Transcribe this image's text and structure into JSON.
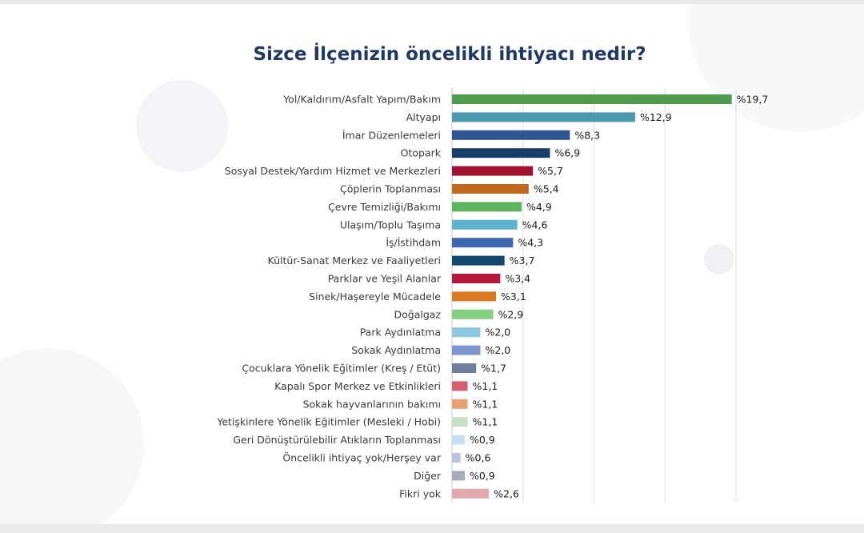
{
  "chart_data": {
    "type": "bar",
    "orientation": "horizontal",
    "title": "Sizce İlçenizin öncelikli ihtiyacı nedir?",
    "value_prefix": "%",
    "xlim": [
      0,
      20
    ],
    "grid": true,
    "categories": [
      "Yol/Kaldırım/Asfalt Yapım/Bakım",
      "Altyapı",
      "İmar Düzenlemeleri",
      "Otopark",
      "Sosyal Destek/Yardım Hizmet ve Merkezleri",
      "Çöplerin Toplanması",
      "Çevre Temizliği/Bakımı",
      "Ulaşım/Toplu Taşıma",
      "İş/İstihdam",
      "Kültür-Sanat Merkez ve Faaliyetleri",
      "Parklar ve Yeşil Alanlar",
      "Sinek/Haşereyle Mücadele",
      "Doğalgaz",
      "Park Aydınlatma",
      "Sokak Aydınlatma",
      "Çocuklara Yönelik Eğitimler (Kreş / Etüt)",
      "Kapalı Spor Merkez ve Etkinlikleri",
      "Sokak hayvanlarının bakımı",
      "Yetişkinlere Yönelik Eğitimler (Mesleki / Hobi)",
      "Geri Dönüştürülebilir Atıkların Toplanması",
      "Öncelikli ihtiyaç yok/Herşey var",
      "Diğer",
      "Fikri yok"
    ],
    "values": [
      19.7,
      12.9,
      8.3,
      6.9,
      5.7,
      5.4,
      4.9,
      4.6,
      4.3,
      3.7,
      3.4,
      3.1,
      2.9,
      2.0,
      2.0,
      1.7,
      1.1,
      1.1,
      1.1,
      0.9,
      0.6,
      0.9,
      2.6
    ],
    "value_labels": [
      "%19,7",
      "%12,9",
      "%8,3",
      "%6,9",
      "%5,7",
      "%5,4",
      "%4,9",
      "%4,6",
      "%4,3",
      "%3,7",
      "%3,4",
      "%3,1",
      "%2,9",
      "%2,0",
      "%2,0",
      "%1,7",
      "%1,1",
      "%1,1",
      "%1,1",
      "%0,9",
      "%0,6",
      "%0,9",
      "%2,6"
    ],
    "colors": [
      "#4e9a4e",
      "#4a9bb0",
      "#2e5590",
      "#173e6a",
      "#a11230",
      "#c0691e",
      "#5eb45e",
      "#5bb5cf",
      "#3d68b0",
      "#14496e",
      "#b3183a",
      "#d97a22",
      "#85cf7e",
      "#8ec7e1",
      "#7e95cf",
      "#6d7f9d",
      "#d45f70",
      "#eca071",
      "#c5e0c3",
      "#c7e0ef",
      "#b9c2e1",
      "#a4abb9",
      "#e3a8ae"
    ]
  }
}
